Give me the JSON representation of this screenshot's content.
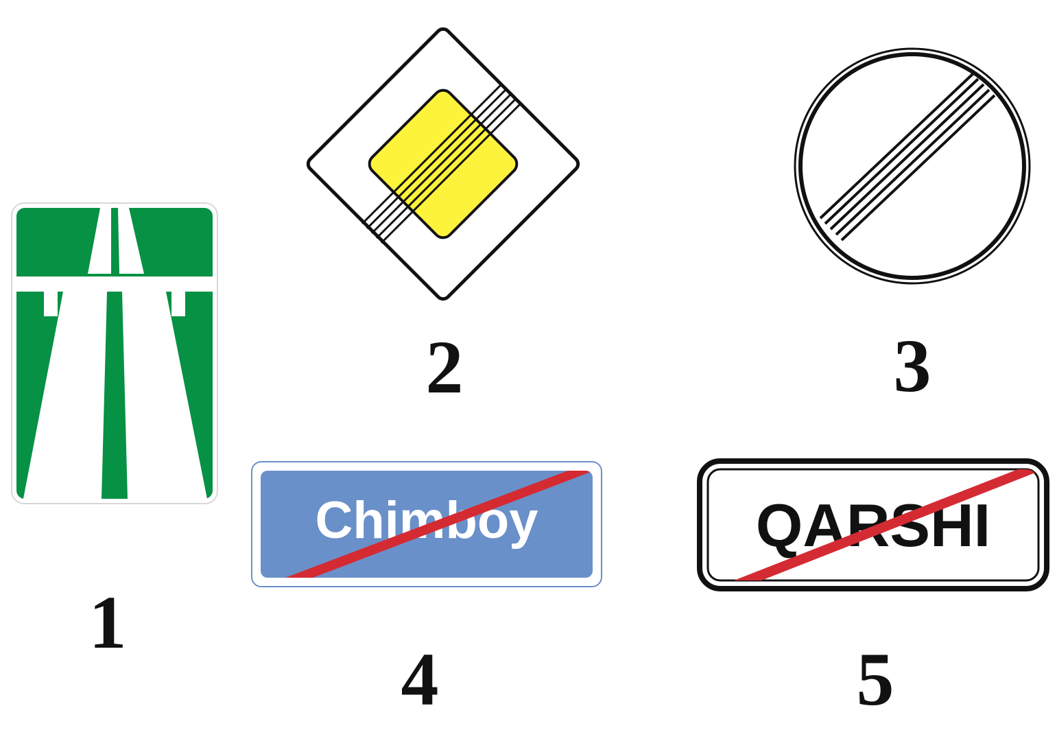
{
  "signs": [
    {
      "number": "1",
      "kind": "motorway-sign",
      "colors": {
        "background": "#069144",
        "road": "#ffffff"
      }
    },
    {
      "number": "2",
      "kind": "end-of-priority-road-sign",
      "colors": {
        "center": "#fdf33b",
        "border": "#111111"
      }
    },
    {
      "number": "3",
      "kind": "end-of-all-restrictions-sign",
      "colors": {
        "stripes": "#111111",
        "background": "#ffffff"
      }
    },
    {
      "number": "4",
      "kind": "end-of-settlement-sign-blue",
      "text": "Chimboy",
      "colors": {
        "background": "#6a90c9",
        "slash": "#d42b33",
        "text": "#ffffff"
      }
    },
    {
      "number": "5",
      "kind": "end-of-settlement-sign-white",
      "text": "QARSHI",
      "colors": {
        "background": "#ffffff",
        "slash": "#d42b33",
        "text": "#111111"
      }
    }
  ]
}
